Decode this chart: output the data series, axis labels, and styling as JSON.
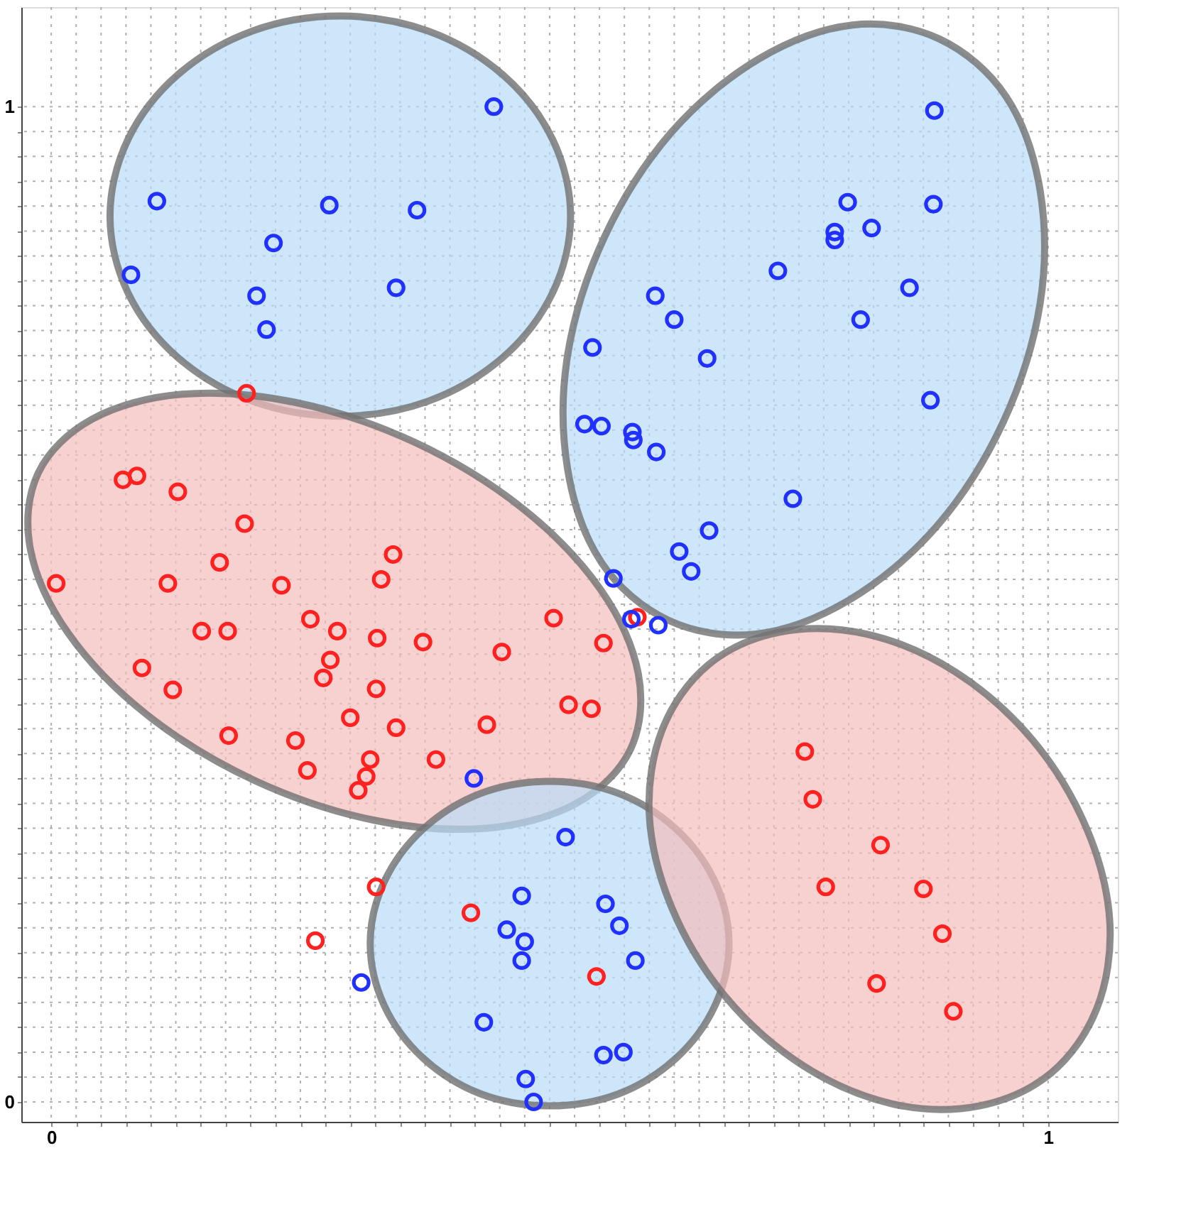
{
  "chart_data": {
    "type": "scatter",
    "xlim": [
      -0.03,
      1.07
    ],
    "ylim": [
      -0.02,
      1.1
    ],
    "xticks": [
      0,
      {
        "value": 0.025,
        "label": null
      },
      {
        "value": 0.05,
        "label": null
      },
      {
        "value": 0.075,
        "label": null
      },
      {
        "value": 0.1,
        "label": null
      },
      {
        "value": 0.125,
        "label": null
      },
      {
        "value": 0.15,
        "label": null
      },
      {
        "value": 0.175,
        "label": null
      },
      {
        "value": 0.2,
        "label": null
      },
      {
        "value": 0.225,
        "label": null
      },
      {
        "value": 0.25,
        "label": null
      },
      {
        "value": 0.275,
        "label": null
      },
      {
        "value": 0.3,
        "label": null
      },
      {
        "value": 0.325,
        "label": null
      },
      {
        "value": 0.35,
        "label": null
      },
      {
        "value": 0.375,
        "label": null
      },
      {
        "value": 0.4,
        "label": null
      },
      {
        "value": 0.425,
        "label": null
      },
      {
        "value": 0.45,
        "label": null
      },
      {
        "value": 0.475,
        "label": null
      },
      {
        "value": 0.5,
        "label": null
      },
      {
        "value": 0.525,
        "label": null
      },
      {
        "value": 0.55,
        "label": null
      },
      {
        "value": 0.575,
        "label": null
      },
      {
        "value": 0.6,
        "label": null
      },
      {
        "value": 0.625,
        "label": null
      },
      {
        "value": 0.65,
        "label": null
      },
      {
        "value": 0.675,
        "label": null
      },
      {
        "value": 0.7,
        "label": null
      },
      {
        "value": 0.725,
        "label": null
      },
      {
        "value": 0.75,
        "label": null
      },
      {
        "value": 0.775,
        "label": null
      },
      {
        "value": 0.8,
        "label": null
      },
      {
        "value": 0.825,
        "label": null
      },
      {
        "value": 0.85,
        "label": null
      },
      {
        "value": 0.875,
        "label": null
      },
      {
        "value": 0.9,
        "label": null
      },
      {
        "value": 0.925,
        "label": null
      },
      {
        "value": 0.95,
        "label": null
      },
      {
        "value": 0.975,
        "label": null
      },
      1
    ],
    "yticks": [
      0,
      {
        "value": 0.025,
        "label": null
      },
      {
        "value": 0.05,
        "label": null
      },
      {
        "value": 0.075,
        "label": null
      },
      {
        "value": 0.1,
        "label": null
      },
      {
        "value": 0.125,
        "label": null
      },
      {
        "value": 0.15,
        "label": null
      },
      {
        "value": 0.175,
        "label": null
      },
      {
        "value": 0.2,
        "label": null
      },
      {
        "value": 0.225,
        "label": null
      },
      {
        "value": 0.25,
        "label": null
      },
      {
        "value": 0.275,
        "label": null
      },
      {
        "value": 0.3,
        "label": null
      },
      {
        "value": 0.325,
        "label": null
      },
      {
        "value": 0.35,
        "label": null
      },
      {
        "value": 0.375,
        "label": null
      },
      {
        "value": 0.4,
        "label": null
      },
      {
        "value": 0.425,
        "label": null
      },
      {
        "value": 0.45,
        "label": null
      },
      {
        "value": 0.475,
        "label": null
      },
      {
        "value": 0.5,
        "label": null
      },
      {
        "value": 0.525,
        "label": null
      },
      {
        "value": 0.55,
        "label": null
      },
      {
        "value": 0.575,
        "label": null
      },
      {
        "value": 0.6,
        "label": null
      },
      {
        "value": 0.625,
        "label": null
      },
      {
        "value": 0.65,
        "label": null
      },
      {
        "value": 0.675,
        "label": null
      },
      {
        "value": 0.7,
        "label": null
      },
      {
        "value": 0.725,
        "label": null
      },
      {
        "value": 0.75,
        "label": null
      },
      {
        "value": 0.775,
        "label": null
      },
      {
        "value": 0.8,
        "label": null
      },
      {
        "value": 0.825,
        "label": null
      },
      {
        "value": 0.85,
        "label": null
      },
      {
        "value": 0.875,
        "label": null
      },
      {
        "value": 0.9,
        "label": null
      },
      {
        "value": 0.925,
        "label": null
      },
      {
        "value": 0.95,
        "label": null
      },
      {
        "value": 0.975,
        "label": null
      },
      1
    ],
    "grid": true,
    "series": [
      {
        "type": "area",
        "color": "#b9dcf7",
        "x": [
          0.521,
          0.503,
          0.453,
          0.378,
          0.29,
          0.202,
          0.127,
          0.077,
          0.059,
          0.077,
          0.127,
          0.202,
          0.29,
          0.378,
          0.453,
          0.503
        ],
        "values": [
          0.89,
          0.967,
          1.032,
          1.076,
          1.091,
          1.076,
          1.032,
          0.967,
          0.89,
          0.813,
          0.748,
          0.704,
          0.689,
          0.704,
          0.748,
          0.813
        ]
      },
      {
        "type": "area",
        "color": "#b9dcf7",
        "x": [
          0.891,
          0.804,
          0.71,
          0.622,
          0.555,
          0.518,
          0.518,
          0.552,
          0.619,
          0.706,
          0.8,
          0.888,
          0.955,
          0.992,
          0.992,
          0.958
        ],
        "values": [
          1.068,
          1.082,
          1.048,
          0.974,
          0.869,
          0.75,
          0.636,
          0.542,
          0.484,
          0.47,
          0.504,
          0.578,
          0.683,
          0.802,
          0.916,
          1.01
        ]
      },
      {
        "type": "area",
        "color": "#f4bcbc",
        "x": [
          0.581,
          0.589,
          0.551,
          0.472,
          0.364,
          0.244,
          0.131,
          0.041,
          -0.013,
          -0.021,
          0.017,
          0.096,
          0.204,
          0.324,
          0.437,
          0.527
        ],
        "values": [
          0.354,
          0.43,
          0.515,
          0.597,
          0.663,
          0.703,
          0.711,
          0.686,
          0.632,
          0.556,
          0.471,
          0.389,
          0.323,
          0.283,
          0.275,
          0.3
        ]
      },
      {
        "type": "area",
        "color": "#b9dcf7",
        "x": [
          0.68,
          0.666,
          0.627,
          0.569,
          0.5,
          0.431,
          0.373,
          0.334,
          0.32,
          0.334,
          0.373,
          0.431,
          0.5,
          0.569,
          0.627,
          0.666
        ],
        "values": [
          0.159,
          0.221,
          0.274,
          0.31,
          0.322,
          0.31,
          0.274,
          0.221,
          0.159,
          0.097,
          0.044,
          0.008,
          -0.004,
          0.008,
          0.044,
          0.097
        ]
      },
      {
        "type": "area",
        "color": "#f4bcbc",
        "x": [
          1.003,
          1.049,
          1.062,
          1.039,
          0.985,
          0.907,
          0.818,
          0.731,
          0.659,
          0.613,
          0.6,
          0.623,
          0.677,
          0.755,
          0.844,
          0.931
        ],
        "values": [
          0.029,
          0.094,
          0.18,
          0.274,
          0.363,
          0.432,
          0.47,
          0.472,
          0.439,
          0.374,
          0.288,
          0.194,
          0.105,
          0.036,
          -0.002,
          -0.004
        ]
      },
      {
        "marker": "circle",
        "color": "#ff2020",
        "x": [
          0.196,
          0.072,
          0.086,
          0.127,
          0.194,
          0.005,
          0.117,
          0.169,
          0.231,
          0.343,
          0.331,
          0.26,
          0.287,
          0.151,
          0.177,
          0.327,
          0.373,
          0.091,
          0.122,
          0.28,
          0.273,
          0.326,
          0.452,
          0.504,
          0.554,
          0.588,
          0.519,
          0.542,
          0.437,
          0.3,
          0.346,
          0.178,
          0.245,
          0.257,
          0.32,
          0.316,
          0.308,
          0.386,
          0.326,
          0.265,
          0.756,
          0.764,
          0.832,
          0.777,
          0.875,
          0.894,
          0.828,
          0.905,
          0.421,
          0.547
        ],
        "values": [
          0.712,
          0.625,
          0.629,
          0.613,
          0.581,
          0.521,
          0.521,
          0.542,
          0.519,
          0.55,
          0.525,
          0.485,
          0.473,
          0.473,
          0.473,
          0.466,
          0.462,
          0.436,
          0.414,
          0.444,
          0.426,
          0.415,
          0.452,
          0.486,
          0.461,
          0.487,
          0.399,
          0.395,
          0.379,
          0.386,
          0.376,
          0.368,
          0.363,
          0.333,
          0.344,
          0.327,
          0.313,
          0.344,
          0.216,
          0.162,
          0.352,
          0.304,
          0.258,
          0.216,
          0.214,
          0.169,
          0.119,
          0.091,
          0.19,
          0.126
        ]
      },
      {
        "marker": "circle",
        "color": "#2030ff",
        "x": [
          0.444,
          0.106,
          0.279,
          0.367,
          0.223,
          0.08,
          0.206,
          0.346,
          0.216,
          0.886,
          0.799,
          0.885,
          0.823,
          0.786,
          0.786,
          0.729,
          0.861,
          0.606,
          0.625,
          0.812,
          0.543,
          0.658,
          0.882,
          0.535,
          0.552,
          0.583,
          0.584,
          0.607,
          0.744,
          0.66,
          0.63,
          0.642,
          0.564,
          0.609,
          0.582,
          0.424,
          0.516,
          0.472,
          0.556,
          0.57,
          0.457,
          0.475,
          0.472,
          0.586,
          0.311,
          0.434,
          0.554,
          0.574,
          0.476,
          0.484
        ],
        "values": [
          1.0,
          0.905,
          0.901,
          0.896,
          0.863,
          0.831,
          0.81,
          0.818,
          0.776,
          0.996,
          0.904,
          0.902,
          0.878,
          0.874,
          0.866,
          0.835,
          0.818,
          0.81,
          0.786,
          0.786,
          0.758,
          0.747,
          0.705,
          0.681,
          0.679,
          0.673,
          0.665,
          0.653,
          0.606,
          0.574,
          0.553,
          0.533,
          0.526,
          0.479,
          0.485,
          0.325,
          0.266,
          0.207,
          0.199,
          0.177,
          0.173,
          0.161,
          0.142,
          0.142,
          0.12,
          0.08,
          0.047,
          0.05,
          0.023,
          0.0
        ]
      }
    ]
  }
}
